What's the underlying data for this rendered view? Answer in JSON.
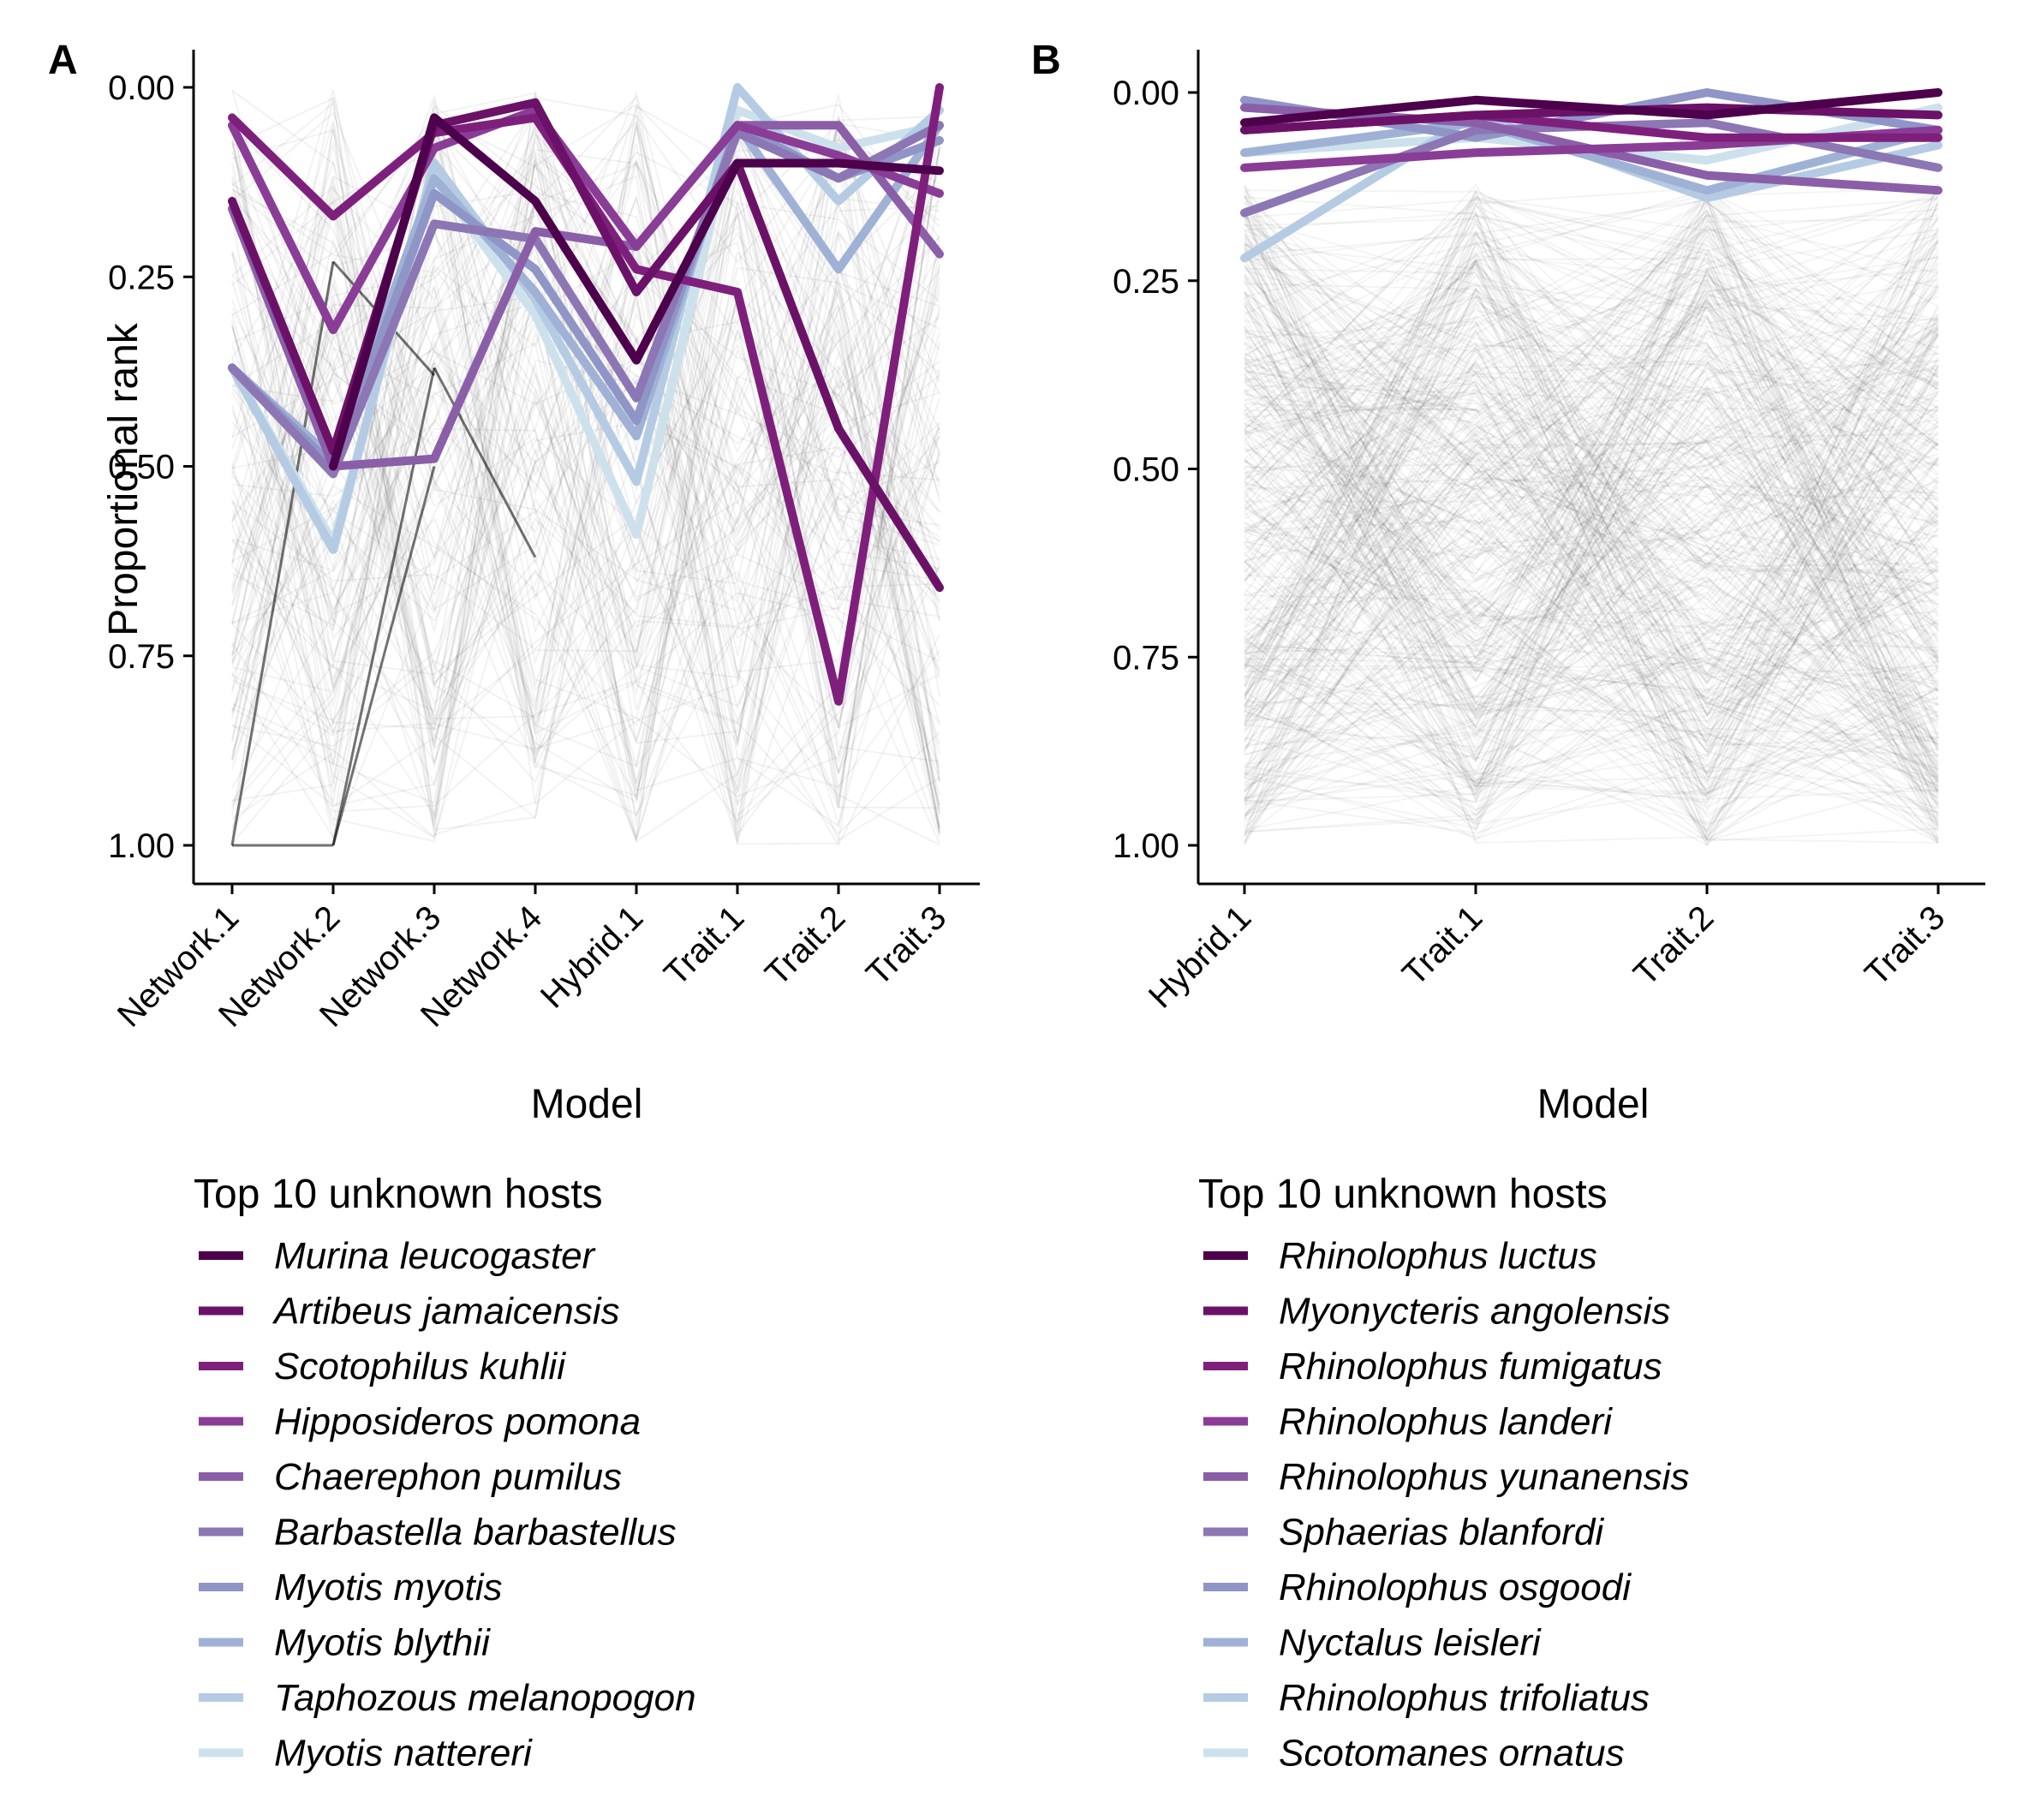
{
  "chart_data": [
    {
      "panel": "A",
      "type": "line",
      "categories": [
        "Network.1",
        "Network.2",
        "Network.3",
        "Network.4",
        "Hybrid.1",
        "Trait.1",
        "Trait.2",
        "Trait.3"
      ],
      "xlabel": "Model",
      "ylabel": "Proportional rank",
      "ylim": [
        0,
        1
      ],
      "y_reversed": true,
      "yticks": [
        "0.00",
        "0.25",
        "0.50",
        "0.75",
        "1.00"
      ],
      "grid": false,
      "background": "many faint grey lines for all other hosts",
      "legend_title": "Top 10 unknown hosts",
      "legend_position": "bottom",
      "series": [
        {
          "name": "Murina leucogaster",
          "color": "#4d004b",
          "values": [
            null,
            0.5,
            0.04,
            0.15,
            0.36,
            0.1,
            0.1,
            0.11
          ]
        },
        {
          "name": "Artibeus jamaicensis",
          "color": "#6b1268",
          "values": [
            0.15,
            0.48,
            0.05,
            0.02,
            0.27,
            0.1,
            0.45,
            0.66
          ]
        },
        {
          "name": "Scotophilus kuhlii",
          "color": "#7f1f7c",
          "values": [
            0.04,
            0.17,
            0.06,
            0.04,
            0.24,
            0.27,
            0.81,
            0.0
          ]
        },
        {
          "name": "Hipposideros pomona",
          "color": "#8a3d96",
          "values": [
            0.05,
            0.32,
            0.08,
            0.03,
            0.21,
            0.05,
            0.09,
            0.14
          ]
        },
        {
          "name": "Chaerephon pumilus",
          "color": "#8b5ea8",
          "values": [
            0.16,
            0.5,
            0.49,
            0.19,
            0.21,
            0.05,
            0.05,
            0.22
          ]
        },
        {
          "name": "Barbastella barbastellus",
          "color": "#8c76b4",
          "values": [
            0.37,
            0.51,
            0.18,
            0.2,
            0.41,
            0.06,
            0.12,
            0.05
          ]
        },
        {
          "name": "Myotis myotis",
          "color": "#8f95c6",
          "values": [
            0.37,
            0.5,
            0.14,
            0.24,
            0.44,
            0.05,
            0.12,
            0.07
          ]
        },
        {
          "name": "Myotis blythii",
          "color": "#9fb2d6",
          "values": [
            0.37,
            0.49,
            0.12,
            0.27,
            0.46,
            0.05,
            0.24,
            0.05
          ]
        },
        {
          "name": "Taphozous melanopogon",
          "color": "#b4cbe3",
          "values": [
            0.37,
            0.61,
            0.1,
            0.28,
            0.52,
            0.0,
            0.15,
            0.03
          ]
        },
        {
          "name": "Myotis nattereri",
          "color": "#cde1ec",
          "values": [
            0.37,
            0.6,
            0.12,
            0.3,
            0.59,
            0.03,
            0.08,
            0.05
          ]
        }
      ]
    },
    {
      "panel": "B",
      "type": "line",
      "categories": [
        "Hybrid.1",
        "Trait.1",
        "Trait.2",
        "Trait.3"
      ],
      "xlabel": "Model",
      "ylabel": "",
      "ylim": [
        0,
        1
      ],
      "y_reversed": true,
      "yticks": [
        "0.00",
        "0.25",
        "0.50",
        "0.75",
        "1.00"
      ],
      "grid": false,
      "background": "many faint grey lines for all other hosts",
      "legend_title": "Top 10 unknown hosts",
      "legend_position": "bottom",
      "series": [
        {
          "name": "Rhinolophus luctus",
          "color": "#4d004b",
          "values": [
            0.04,
            0.01,
            0.03,
            0.0
          ]
        },
        {
          "name": "Myonycteris angolensis",
          "color": "#6b1268",
          "values": [
            0.05,
            0.03,
            0.02,
            0.03
          ]
        },
        {
          "name": "Rhinolophus fumigatus",
          "color": "#7f1f7c",
          "values": [
            0.05,
            0.03,
            0.06,
            0.06
          ]
        },
        {
          "name": "Rhinolophus landeri",
          "color": "#8a3d96",
          "values": [
            0.1,
            0.08,
            0.07,
            0.05
          ]
        },
        {
          "name": "Rhinolophus yunanensis",
          "color": "#8b5ea8",
          "values": [
            0.02,
            0.04,
            0.11,
            0.13
          ]
        },
        {
          "name": "Sphaerias blanfordi",
          "color": "#8c76b4",
          "values": [
            0.16,
            0.05,
            0.04,
            0.1
          ]
        },
        {
          "name": "Rhinolophus osgoodi",
          "color": "#8f95c6",
          "values": [
            0.01,
            0.06,
            0.0,
            0.05
          ]
        },
        {
          "name": "Nyctalus leisleri",
          "color": "#9fb2d6",
          "values": [
            0.08,
            0.04,
            0.13,
            0.05
          ]
        },
        {
          "name": "Rhinolophus trifoliatus",
          "color": "#b4cbe3",
          "values": [
            0.22,
            0.03,
            0.14,
            0.07
          ]
        },
        {
          "name": "Scotomanes ornatus",
          "color": "#cde1ec",
          "values": [
            0.08,
            0.06,
            0.09,
            0.02
          ]
        }
      ]
    }
  ]
}
